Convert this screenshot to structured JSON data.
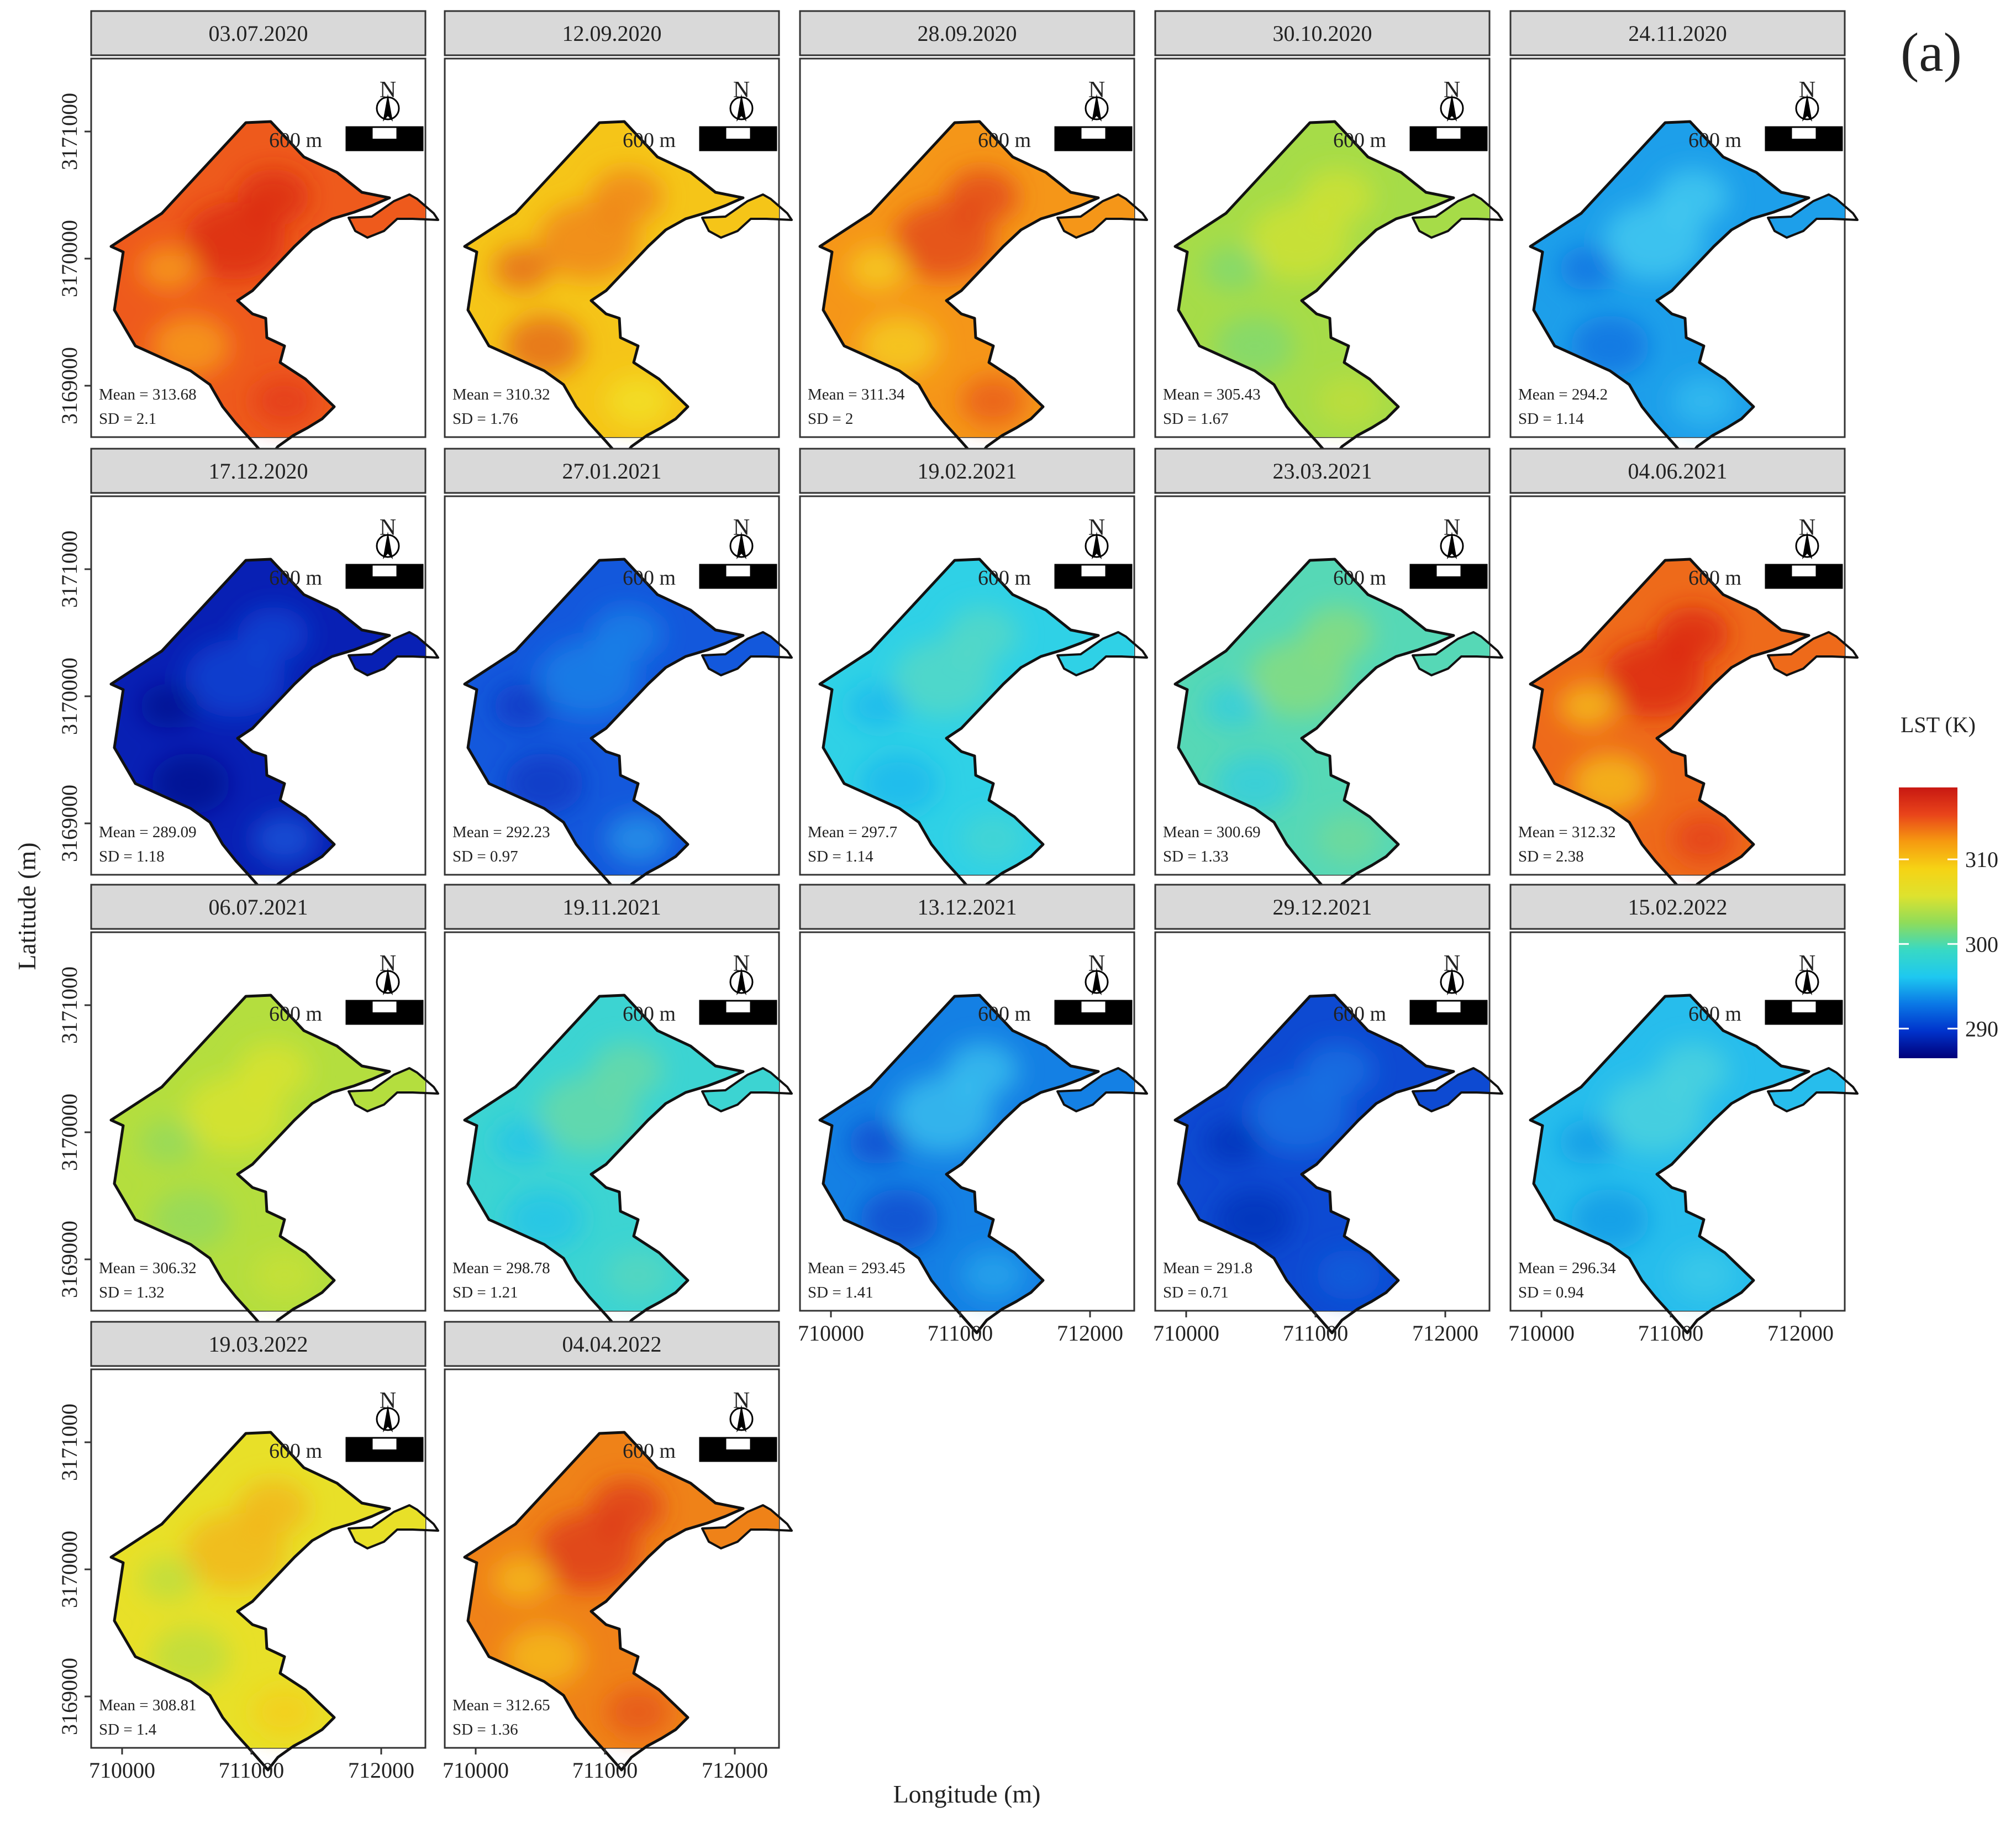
{
  "figure": {
    "panel_label": "(a)",
    "x_axis_label": "Longitude (m)",
    "y_axis_label": "Latitude (m)",
    "x_ticks": [
      "710000",
      "711000",
      "712000"
    ],
    "y_ticks": [
      "3171000",
      "3170000",
      "3169000"
    ],
    "scale_bar_label": "600 m",
    "north_label": "N"
  },
  "legend": {
    "title": "LST (K)",
    "ticks": [
      "310",
      "300",
      "290"
    ],
    "colors": [
      "#00007a",
      "#0033cc",
      "#0a78e6",
      "#1ec8f0",
      "#38d9c4",
      "#8fdc5a",
      "#dee22e",
      "#f6d314",
      "#f69a10",
      "#e9441a",
      "#c81812"
    ]
  },
  "panels": [
    {
      "date": "03.07.2020",
      "mean": "Mean = 313.68",
      "sd": "SD = 2.1",
      "fill": "#ee5a1c",
      "spots": [
        "#d92516",
        "#f7a31a",
        "#e33b18"
      ]
    },
    {
      "date": "12.09.2020",
      "mean": "Mean = 310.32",
      "sd": "SD = 1.76",
      "fill": "#f5c518",
      "spots": [
        "#ef7e18",
        "#e3621a",
        "#f2e325"
      ]
    },
    {
      "date": "28.09.2020",
      "mean": "Mean = 311.34",
      "sd": "SD = 2",
      "fill": "#f59618",
      "spots": [
        "#e0401a",
        "#f5d21f",
        "#e8561a"
      ]
    },
    {
      "date": "30.10.2020",
      "mean": "Mean = 305.43",
      "sd": "SD = 1.67",
      "fill": "#a6dc48",
      "spots": [
        "#d2e233",
        "#7cd874",
        "#c0de3a"
      ]
    },
    {
      "date": "24.11.2020",
      "mean": "Mean = 294.2",
      "sd": "SD = 1.14",
      "fill": "#1d9fea",
      "spots": [
        "#47cdf0",
        "#0b6fe0",
        "#36bff0"
      ]
    },
    {
      "date": "17.12.2020",
      "mean": "Mean = 289.09",
      "sd": "SD = 1.18",
      "fill": "#0820b4",
      "spots": [
        "#0f48d6",
        "#020e8e",
        "#1858dc"
      ]
    },
    {
      "date": "27.01.2021",
      "mean": "Mean = 292.23",
      "sd": "SD = 0.97",
      "fill": "#1358dc",
      "spots": [
        "#1e86e8",
        "#0a36c2",
        "#2a9aea"
      ]
    },
    {
      "date": "19.02.2021",
      "mean": "Mean = 297.7",
      "sd": "SD = 1.14",
      "fill": "#2fd1e6",
      "spots": [
        "#5ad8c2",
        "#1cb7ee",
        "#48d6d0"
      ]
    },
    {
      "date": "23.03.2021",
      "mean": "Mean = 300.69",
      "sd": "SD = 1.33",
      "fill": "#56d8b6",
      "spots": [
        "#8cdc78",
        "#30cce0",
        "#74da96"
      ]
    },
    {
      "date": "04.06.2021",
      "mean": "Mean = 312.32",
      "sd": "SD = 2.38",
      "fill": "#ee6a1a",
      "spots": [
        "#d92216",
        "#f6c418",
        "#e33e18"
      ]
    },
    {
      "date": "06.07.2021",
      "mean": "Mean = 306.32",
      "sd": "SD = 1.32",
      "fill": "#b4de3e",
      "spots": [
        "#dce32c",
        "#92da60",
        "#c8e034"
      ]
    },
    {
      "date": "19.11.2021",
      "mean": "Mean = 298.78",
      "sd": "SD = 1.21",
      "fill": "#3cd4d2",
      "spots": [
        "#6cd9a2",
        "#24c3ea",
        "#58d7bc"
      ]
    },
    {
      "date": "13.12.2021",
      "mean": "Mean = 293.45",
      "sd": "SD = 1.41",
      "fill": "#1480e4",
      "spots": [
        "#3cc4ef",
        "#0a46ce",
        "#2aa8ec"
      ]
    },
    {
      "date": "29.12.2021",
      "mean": "Mean = 291.8",
      "sd": "SD = 0.71",
      "fill": "#0d4ad2",
      "spots": [
        "#1a76e4",
        "#0630b8",
        "#1460dc"
      ]
    },
    {
      "date": "15.02.2022",
      "mean": "Mean = 296.34",
      "sd": "SD = 0.94",
      "fill": "#27bdec",
      "spots": [
        "#4fd4dc",
        "#1498e6",
        "#3ecbe8"
      ]
    },
    {
      "date": "19.03.2022",
      "mean": "Mean = 308.81",
      "sd": "SD = 1.4",
      "fill": "#e8e028",
      "spots": [
        "#f3b11a",
        "#b8de40",
        "#f6cc1c"
      ]
    },
    {
      "date": "04.04.2022",
      "mean": "Mean = 312.65",
      "sd": "SD = 1.36",
      "fill": "#ef8218",
      "spots": [
        "#dc3418",
        "#f5c01a",
        "#e4521a"
      ]
    }
  ]
}
